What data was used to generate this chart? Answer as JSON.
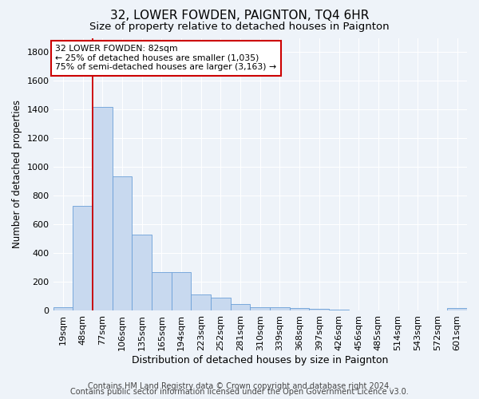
{
  "title": "32, LOWER FOWDEN, PAIGNTON, TQ4 6HR",
  "subtitle": "Size of property relative to detached houses in Paignton",
  "xlabel": "Distribution of detached houses by size in Paignton",
  "ylabel": "Number of detached properties",
  "categories": [
    "19sqm",
    "48sqm",
    "77sqm",
    "106sqm",
    "135sqm",
    "165sqm",
    "194sqm",
    "223sqm",
    "252sqm",
    "281sqm",
    "310sqm",
    "339sqm",
    "368sqm",
    "397sqm",
    "426sqm",
    "456sqm",
    "485sqm",
    "514sqm",
    "543sqm",
    "572sqm",
    "601sqm"
  ],
  "values": [
    20,
    730,
    1420,
    935,
    530,
    265,
    265,
    110,
    90,
    45,
    25,
    20,
    15,
    10,
    5,
    3,
    2,
    1,
    1,
    0,
    15
  ],
  "bar_color": "#c8d9ef",
  "bar_edge_color": "#6a9fd8",
  "vline_x_index": 2,
  "vline_color": "#cc0000",
  "annotation_text": "32 LOWER FOWDEN: 82sqm\n← 25% of detached houses are smaller (1,035)\n75% of semi-detached houses are larger (3,163) →",
  "annotation_box_color": "#ffffff",
  "annotation_box_edge": "#cc0000",
  "ylim": [
    0,
    1900
  ],
  "yticks": [
    0,
    200,
    400,
    600,
    800,
    1000,
    1200,
    1400,
    1600,
    1800
  ],
  "footer1": "Contains HM Land Registry data © Crown copyright and database right 2024.",
  "footer2": "Contains public sector information licensed under the Open Government Licence v3.0.",
  "bg_color": "#eef3f9",
  "plot_bg_color": "#eef3f9",
  "title_fontsize": 11,
  "subtitle_fontsize": 9.5,
  "xlabel_fontsize": 9,
  "ylabel_fontsize": 8.5,
  "tick_fontsize": 8,
  "annotation_fontsize": 7.8,
  "footer_fontsize": 7
}
